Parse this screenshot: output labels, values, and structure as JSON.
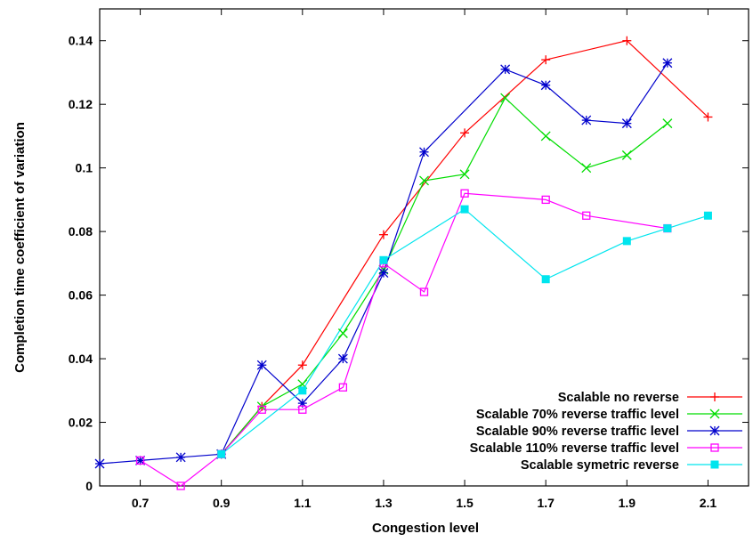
{
  "chart_data": {
    "type": "line",
    "title": "",
    "xlabel": "Congestion level",
    "ylabel": "Completion time coefficient of variation",
    "xlim": [
      0.6,
      2.2
    ],
    "ylim": [
      0,
      0.15
    ],
    "x_ticks": [
      0.7,
      0.9,
      1.1,
      1.3,
      1.5,
      1.7,
      1.9,
      2.1
    ],
    "x_tick_labels": [
      "0.7",
      "0.9",
      "1.1",
      "1.3",
      "1.5",
      "1.7",
      "1.9",
      "2.1"
    ],
    "y_ticks": [
      0,
      0.02,
      0.04,
      0.06,
      0.08,
      0.1,
      0.12,
      0.14
    ],
    "y_tick_labels": [
      "0",
      "0.02",
      "0.04",
      "0.06",
      "0.08",
      "0.1",
      "0.12",
      "0.14"
    ],
    "grid": false,
    "legend_position": "bottom-right",
    "series": [
      {
        "name": "Scalable no reverse",
        "color": "#ff0000",
        "marker": "plus",
        "x": [
          0.9,
          1.0,
          1.1,
          1.3,
          1.5,
          1.7,
          1.9,
          2.1
        ],
        "y": [
          0.01,
          0.025,
          0.038,
          0.079,
          0.111,
          0.134,
          0.14,
          0.116
        ]
      },
      {
        "name": "Scalable 70% reverse traffic level",
        "color": "#00dd00",
        "marker": "cross",
        "x": [
          0.9,
          1.0,
          1.1,
          1.2,
          1.3,
          1.4,
          1.5,
          1.6,
          1.7,
          1.8,
          1.9,
          2.0
        ],
        "y": [
          0.01,
          0.025,
          0.032,
          0.048,
          0.068,
          0.096,
          0.098,
          0.122,
          0.11,
          0.1,
          0.104,
          0.114
        ]
      },
      {
        "name": "Scalable 90% reverse traffic level",
        "color": "#0000cc",
        "marker": "star",
        "x": [
          0.6,
          0.7,
          0.8,
          0.9,
          1.0,
          1.1,
          1.2,
          1.3,
          1.4,
          1.6,
          1.7,
          1.8,
          1.9,
          2.0
        ],
        "y": [
          0.007,
          0.008,
          0.009,
          0.01,
          0.038,
          0.026,
          0.04,
          0.067,
          0.105,
          0.131,
          0.126,
          0.115,
          0.114,
          0.133
        ]
      },
      {
        "name": "Scalable 110% reverse traffic level",
        "color": "#ff00ff",
        "marker": "open-square",
        "x": [
          0.7,
          0.8,
          0.9,
          1.0,
          1.1,
          1.2,
          1.3,
          1.4,
          1.5,
          1.7,
          1.8,
          2.0
        ],
        "y": [
          0.008,
          0.0,
          0.01,
          0.024,
          0.024,
          0.031,
          0.07,
          0.061,
          0.092,
          0.09,
          0.085,
          0.081
        ]
      },
      {
        "name": "Scalable symetric reverse",
        "color": "#00e5ee",
        "marker": "filled-square",
        "x": [
          0.9,
          1.1,
          1.3,
          1.5,
          1.7,
          1.9,
          2.0,
          2.1
        ],
        "y": [
          0.01,
          0.03,
          0.071,
          0.087,
          0.065,
          0.077,
          0.081,
          0.085
        ]
      }
    ]
  }
}
